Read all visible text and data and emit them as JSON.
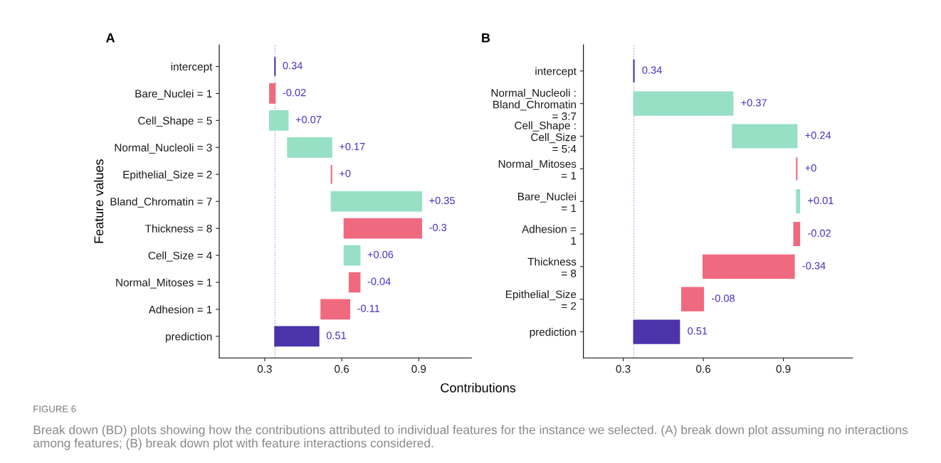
{
  "chart_data": [
    {
      "type": "bar",
      "orientation": "horizontal",
      "title": "A",
      "xlabel": "Contributions",
      "ylabel": "Feature values",
      "categories": [
        "intercept",
        "Bare_Nuclei = 1",
        "Cell_Shape = 5",
        "Normal_Nucleoli = 3",
        "Epithelial_Size = 2",
        "Bland_Chromatin = 7",
        "Thickness = 8",
        "Cell_Size = 4",
        "Normal_Mitoses = 1",
        "Adhesion = 1",
        "prediction"
      ],
      "base": [
        0.34,
        0.34,
        0.32,
        0.39,
        0.56,
        0.56,
        0.91,
        0.61,
        0.67,
        0.63,
        0.34
      ],
      "values": [
        0,
        -0.02,
        0.07,
        0.17,
        0,
        0.35,
        -0.3,
        0.06,
        -0.04,
        -0.11,
        0.17
      ],
      "colors": [
        "#4b33aa",
        "#f06a7f",
        "#97e0c5",
        "#97e0c5",
        "#f06a7f",
        "#97e0c5",
        "#f06a7f",
        "#97e0c5",
        "#f06a7f",
        "#f06a7f",
        "#4b33aa"
      ],
      "value_labels": [
        "0.34",
        "-0.02",
        "+0.07",
        "+0.17",
        "+0",
        "+0.35",
        "-0.3",
        "+0.06",
        "-0.04",
        "-0.11",
        "0.51"
      ],
      "xlim": [
        0.123,
        1.105
      ],
      "xticks": [
        0.3,
        0.6,
        0.9
      ],
      "ref_lines": [
        {
          "axis": "x",
          "value": 0.34,
          "color": "#a89ae0",
          "line_style": "dotted"
        }
      ],
      "grid": false,
      "annotations": [
        "FIGURE 6",
        "Break down (BD) plots showing how the contributions attributed to individual features for the instance we selected. (A) break down plot assuming no interactions among features; (B) break down plot with feature interactions considered."
      ]
    },
    {
      "type": "bar",
      "orientation": "horizontal",
      "title": "B",
      "categories": [
        "intercept",
        "Normal_Nucleoli :\nBland_Chromatin\n= 3:7",
        "Cell_Shape :\nCell_Size\n= 5:4",
        "Normal_Mitoses\n= 1",
        "Bare_Nuclei\n= 1",
        "Adhesion =\n1",
        "Thickness\n= 8",
        "Epithelial_Size\n= 2",
        "prediction"
      ],
      "base": [
        0.34,
        0.34,
        0.71,
        0.95,
        0.95,
        0.96,
        0.94,
        0.6,
        0.34
      ],
      "values": [
        0,
        0.37,
        0.24,
        0,
        0.01,
        -0.02,
        -0.34,
        -0.08,
        0.17
      ],
      "colors": [
        "#4b33aa",
        "#97e0c5",
        "#97e0c5",
        "#f06a7f",
        "#97e0c5",
        "#f06a7f",
        "#f06a7f",
        "#f06a7f",
        "#4b33aa"
      ],
      "value_labels": [
        "0.34",
        "+0.37",
        "+0.24",
        "+0",
        "+0.01",
        "-0.02",
        "-0.34",
        "-0.08",
        "0.51"
      ],
      "xlim": [
        0.151,
        1.159
      ],
      "xticks": [
        0.3,
        0.6,
        0.9
      ],
      "ref_lines": [
        {
          "axis": "x",
          "value": 0.34,
          "color": "#a89ae0",
          "line_style": "dotted"
        }
      ],
      "grid": false
    }
  ]
}
